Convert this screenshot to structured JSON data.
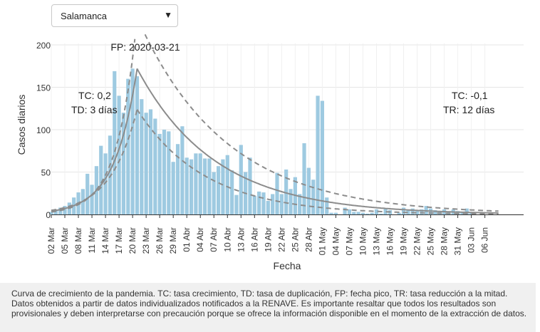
{
  "selector": {
    "value": "Salamanca",
    "icon": "caret-down-icon"
  },
  "caption": "Curva de crecimiento de la pandemia. TC: tasa crecimiento, TD: tasa de duplicación, FP: fecha pico, TR: tasa reducción a la mitad. Datos obtenidos a partir de datos individualizados notificados a la RENAVE. Es importante resaltar que todos los resultados son provisionales y deben interpretarse con precaución porque se ofrece la información disponible en el momento de la extracción de datos.",
  "chart_data": {
    "type": "bar",
    "xlabel": "Fecha",
    "ylabel": "Casos diarios",
    "ylim": [
      0,
      210
    ],
    "yticks": [
      0,
      50,
      100,
      150,
      200
    ],
    "grid": true,
    "start_date": "2020-03-02",
    "tick_labels": [
      "02 Mar",
      "05 Mar",
      "08 Mar",
      "11 Mar",
      "14 Mar",
      "17 Mar",
      "20 Mar",
      "23 Mar",
      "26 Mar",
      "29 Mar",
      "01 Abr",
      "04 Abr",
      "07 Abr",
      "10 Abr",
      "13 Abr",
      "16 Abr",
      "19 Abr",
      "22 Abr",
      "25 Abr",
      "28 Abr",
      "01 May",
      "04 May",
      "07 May",
      "10 May",
      "13 May",
      "16 May",
      "19 May",
      "22 May",
      "25 May",
      "28 May",
      "31 May",
      "03 Jun",
      "06 Jun"
    ],
    "bar_color": "#9ecae1",
    "values": [
      3,
      6,
      8,
      10,
      14,
      20,
      26,
      30,
      48,
      35,
      57,
      81,
      72,
      93,
      169,
      140,
      120,
      160,
      172,
      163,
      136,
      120,
      124,
      113,
      95,
      100,
      98,
      62,
      83,
      104,
      67,
      65,
      72,
      72,
      66,
      66,
      50,
      57,
      65,
      70,
      52,
      23,
      82,
      50,
      67,
      22,
      27,
      26,
      16,
      24,
      49,
      24,
      53,
      30,
      44,
      24,
      84,
      55,
      41,
      140,
      134,
      20,
      2,
      2,
      0,
      8,
      6,
      3,
      3,
      2,
      1,
      2,
      6,
      1,
      7,
      5,
      0,
      2,
      8,
      5,
      7,
      4,
      6,
      10,
      7,
      5,
      4,
      6,
      3,
      6,
      4,
      3,
      7,
      3
    ],
    "peak_date": "2020-03-21",
    "annotations": {
      "fp": "FP: 2020-03-21",
      "tc_growth": "TC: 0,2",
      "td": "TD: 3 días",
      "tc_decline": "TC: -0,1",
      "tr": "TR: 12 días"
    },
    "fit": {
      "peak_value": 172,
      "growth_rate": 0.2,
      "decay_rate": -0.058
    }
  }
}
